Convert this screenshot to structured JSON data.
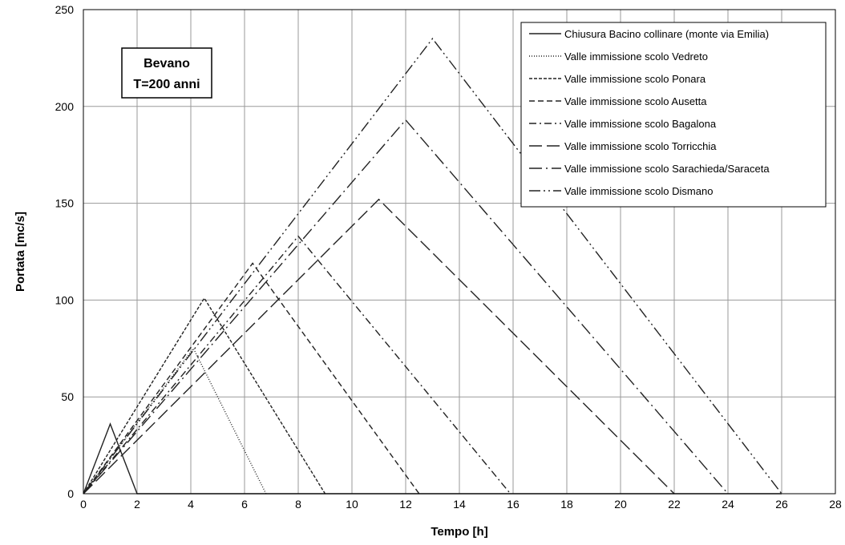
{
  "chart_data": {
    "type": "line",
    "xlabel": "Tempo [h]",
    "ylabel": "Portata [mc/s]",
    "xlim": [
      0,
      28
    ],
    "ylim": [
      0,
      250
    ],
    "x_ticks": [
      0,
      2,
      4,
      6,
      8,
      10,
      12,
      14,
      16,
      18,
      20,
      22,
      24,
      26,
      28
    ],
    "y_ticks": [
      0,
      50,
      100,
      150,
      200,
      250
    ],
    "grid": true,
    "legend_position": "top-right",
    "annotation": {
      "line1": "Bevano",
      "line2": "T=200 anni"
    },
    "series": [
      {
        "name": "Chiusura Bacino collinare (monte via Emilia)",
        "dash": "solid",
        "points": [
          [
            0,
            0
          ],
          [
            1,
            36
          ],
          [
            2,
            0
          ],
          [
            26,
            0
          ]
        ]
      },
      {
        "name": "Valle immissione scolo Vedreto",
        "dash": "dotted",
        "points": [
          [
            0,
            0
          ],
          [
            4.1,
            75
          ],
          [
            6.8,
            0
          ]
        ]
      },
      {
        "name": "Valle immissione scolo Ponara",
        "dash": "short-dash",
        "points": [
          [
            0,
            0
          ],
          [
            4.5,
            101
          ],
          [
            9,
            0
          ]
        ]
      },
      {
        "name": "Valle immissione scolo Ausetta",
        "dash": "dash",
        "points": [
          [
            0,
            0
          ],
          [
            6.3,
            119
          ],
          [
            12.5,
            0
          ]
        ]
      },
      {
        "name": "Valle immissione scolo Bagalona",
        "dash": "dash-dot",
        "points": [
          [
            0,
            0
          ],
          [
            8,
            133
          ],
          [
            15.9,
            0
          ]
        ]
      },
      {
        "name": "Valle immissione scolo Torricchia",
        "dash": "long-dash",
        "points": [
          [
            0,
            0
          ],
          [
            11,
            152
          ],
          [
            22,
            0
          ]
        ]
      },
      {
        "name": "Valle immissione scolo Sarachieda/Saraceta",
        "dash": "long-dash-dot",
        "points": [
          [
            0,
            0
          ],
          [
            12,
            193
          ],
          [
            24,
            0
          ]
        ]
      },
      {
        "name": "Valle immissione scolo Dismano",
        "dash": "dash-dot-dot",
        "points": [
          [
            0,
            0
          ],
          [
            13,
            235
          ],
          [
            26,
            0
          ]
        ]
      }
    ]
  }
}
